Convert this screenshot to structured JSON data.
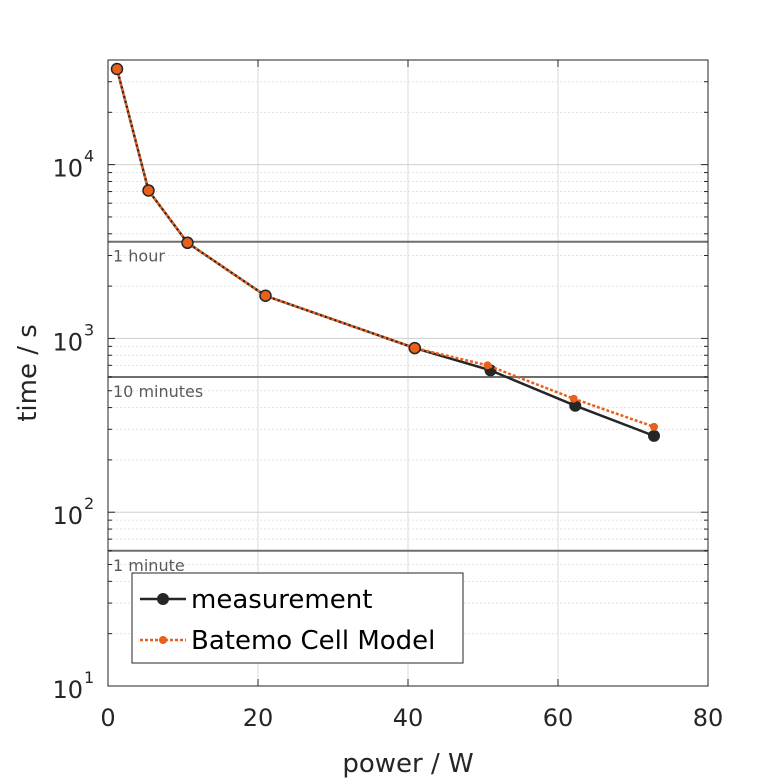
{
  "chart_data": {
    "type": "line",
    "title": "",
    "xlabel": "power / W",
    "ylabel": "time / s",
    "xlim": [
      0,
      80
    ],
    "ylim": [
      10,
      40000
    ],
    "yscale": "log",
    "grid": true,
    "x_ticks": [
      0,
      20,
      40,
      60,
      80
    ],
    "x_tick_labels": [
      "0",
      "20",
      "40",
      "60",
      "80"
    ],
    "y_ticks": [
      10,
      100,
      1000,
      10000
    ],
    "y_tick_labels": [
      {
        "base": "10",
        "exp": "1"
      },
      {
        "base": "10",
        "exp": "2"
      },
      {
        "base": "10",
        "exp": "3"
      },
      {
        "base": "10",
        "exp": "4"
      }
    ],
    "reference_lines": [
      {
        "y": 3600,
        "label": "1 hour"
      },
      {
        "y": 600,
        "label": "10 minutes"
      },
      {
        "y": 60,
        "label": "1 minute"
      }
    ],
    "series": [
      {
        "name": "measurement",
        "color": "#262626",
        "style": "solid",
        "x": [
          1.2,
          5.4,
          10.6,
          21.0,
          40.9,
          51.0,
          62.3,
          72.8
        ],
        "y": [
          35500,
          7100,
          3550,
          1760,
          880,
          655,
          410,
          275
        ]
      },
      {
        "name": "Batemo Cell Model",
        "color": "#e8601c",
        "style": "dotted",
        "x": [
          1.2,
          5.4,
          10.6,
          21.0,
          40.9,
          50.6,
          62.1,
          72.8
        ],
        "y": [
          35500,
          7100,
          3550,
          1760,
          880,
          700,
          450,
          310
        ]
      }
    ],
    "legend": {
      "position": "bottom-left"
    }
  },
  "colors": {
    "axis": "#262626",
    "grid": "#d9d9d9",
    "reference_line": "#6e6e6e"
  }
}
